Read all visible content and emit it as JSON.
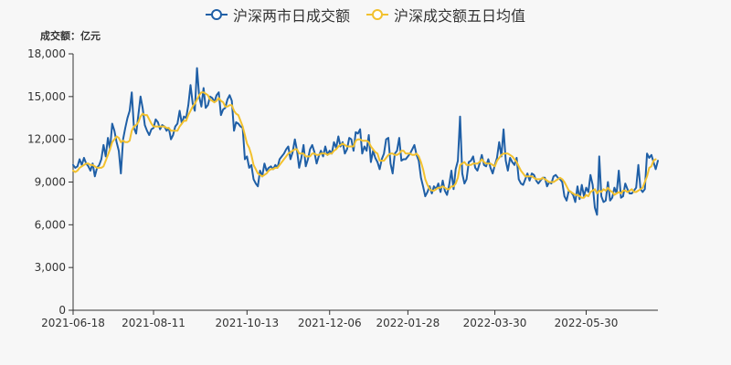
{
  "colors": {
    "series1": "#1f5fa6",
    "series2": "#f2c12e"
  },
  "chart_data": {
    "type": "line",
    "unit_label": "成交额：亿元",
    "ylim": [
      0,
      18000
    ],
    "y_ticks": [
      "0",
      "3,000",
      "6,000",
      "9,000",
      "12,000",
      "15,000",
      "18,000"
    ],
    "x_tick_labels": [
      "2021-06-18",
      "2021-08-11",
      "2021-10-13",
      "2021-12-06",
      "2022-01-28",
      "2022-03-30",
      "2022-05-30"
    ],
    "x_tick_positions": [
      0,
      37,
      80,
      118,
      154,
      194,
      236
    ],
    "legend_position": "top-center",
    "grid": false,
    "series": [
      {
        "name": "沪深两市日成交额",
        "values": [
          10200,
          10000,
          10100,
          10600,
          10200,
          10700,
          10300,
          10100,
          9800,
          10300,
          9400,
          10000,
          10200,
          10600,
          11600,
          10800,
          12100,
          11300,
          13100,
          12600,
          11800,
          11200,
          9600,
          12000,
          12800,
          13500,
          14000,
          15300,
          12800,
          12400,
          13700,
          15000,
          14200,
          13000,
          12600,
          12300,
          12700,
          12800,
          13400,
          13200,
          12700,
          13000,
          12900,
          12600,
          12800,
          12000,
          12300,
          12900,
          13100,
          14000,
          13100,
          13600,
          13500,
          14400,
          15800,
          14500,
          14000,
          17000,
          15000,
          14300,
          15600,
          14200,
          14400,
          15000,
          14900,
          14600,
          15100,
          15300,
          13700,
          14100,
          14200,
          14800,
          15100,
          14700,
          12600,
          13200,
          13100,
          12900,
          12800,
          10600,
          10800,
          10000,
          10200,
          9200,
          8900,
          8700,
          9800,
          9400,
          10300,
          9800,
          10000,
          10100,
          9900,
          10200,
          10000,
          10600,
          10800,
          11000,
          11300,
          11500,
          10600,
          11100,
          12000,
          11200,
          10000,
          10700,
          11600,
          10100,
          10600,
          11300,
          11600,
          11100,
          10300,
          10800,
          11200,
          10800,
          11500,
          10900,
          11200,
          11000,
          11800,
          11400,
          12200,
          11500,
          11800,
          11000,
          11300,
          12100,
          12000,
          11200,
          12500,
          12400,
          12700,
          11000,
          11500,
          11200,
          12300,
          10400,
          11200,
          10700,
          10400,
          9900,
          10600,
          11000,
          12000,
          12100,
          10300,
          9600,
          11000,
          11200,
          12100,
          10500,
          10600,
          10600,
          10800,
          11000,
          11300,
          11600,
          10900,
          10500,
          9300,
          8700,
          8000,
          8300,
          8700,
          8200,
          8700,
          8500,
          8900,
          8300,
          9100,
          8400,
          8100,
          8800,
          9800,
          8500,
          9900,
          10500,
          13600,
          9600,
          8900,
          9200,
          10400,
          10500,
          10800,
          10000,
          9800,
          10300,
          10900,
          10200,
          10100,
          10600,
          10000,
          9600,
          10200,
          10700,
          11800,
          10800,
          12700,
          10500,
          9800,
          10700,
          10400,
          10200,
          10700,
          9200,
          8900,
          8800,
          9200,
          9600,
          9100,
          9600,
          9500,
          9100,
          8900,
          9100,
          9300,
          9300,
          8700,
          9000,
          8900,
          9400,
          9500,
          9300,
          9200,
          9000,
          8000,
          7700,
          8400,
          8300,
          8100,
          7600,
          8700,
          7800,
          8800,
          8000,
          8600,
          8300,
          9500,
          8800,
          7200,
          6700,
          10800,
          8000,
          7600,
          7700,
          9000,
          7700,
          7900,
          8600,
          8200,
          9800,
          7900,
          8000,
          8900,
          8500,
          8200,
          8200,
          8400,
          8600,
          10200,
          8500,
          8300,
          8500,
          11000,
          10700,
          10900,
          10400,
          9900,
          10500
        ],
        "color": "#1f5fa6"
      },
      {
        "name": "沪深成交额五日均值",
        "values": [
          9800,
          9700,
          9800,
          10000,
          10100,
          10200,
          10300,
          10300,
          10200,
          10200,
          10100,
          10000,
          10000,
          10000,
          10100,
          10500,
          10900,
          11300,
          11800,
          12000,
          12200,
          12100,
          11800,
          11900,
          11800,
          11800,
          11900,
          12600,
          12900,
          13000,
          13200,
          13600,
          13800,
          13700,
          13700,
          13400,
          13100,
          12900,
          12900,
          12900,
          12900,
          12900,
          12900,
          12800,
          12800,
          12600,
          12600,
          12600,
          12600,
          12900,
          13100,
          13300,
          13300,
          13700,
          14000,
          14300,
          14500,
          14800,
          15100,
          15300,
          15300,
          15200,
          15100,
          14800,
          14700,
          14600,
          14700,
          14900,
          14700,
          14600,
          14300,
          14300,
          14400,
          14400,
          14000,
          13800,
          13700,
          13300,
          12900,
          12300,
          11700,
          11400,
          10900,
          10200,
          9900,
          9600,
          9500,
          9400,
          9500,
          9600,
          9800,
          9900,
          9900,
          10000,
          10000,
          10200,
          10400,
          10600,
          10800,
          11000,
          11100,
          11200,
          11300,
          11300,
          11000,
          11000,
          11000,
          10800,
          10800,
          10800,
          11000,
          11000,
          10900,
          10900,
          11000,
          11000,
          11000,
          10900,
          11000,
          11000,
          11200,
          11300,
          11500,
          11600,
          11700,
          11600,
          11500,
          11500,
          11500,
          11500,
          11900,
          12000,
          12000,
          11900,
          11900,
          11900,
          11800,
          11500,
          11300,
          11100,
          11000,
          10500,
          10500,
          10500,
          10700,
          10900,
          11000,
          11000,
          10900,
          10900,
          11000,
          11200,
          11200,
          11000,
          11000,
          11000,
          10900,
          10900,
          11000,
          10800,
          10400,
          9900,
          9200,
          8800,
          8500,
          8400,
          8400,
          8500,
          8600,
          8600,
          8700,
          8600,
          8500,
          8500,
          8700,
          8700,
          8900,
          9300,
          10200,
          10300,
          10400,
          10200,
          10200,
          10200,
          10300,
          10300,
          10300,
          10400,
          10600,
          10400,
          10300,
          10300,
          10300,
          10200,
          10100,
          10500,
          10700,
          10900,
          11000,
          11000,
          11000,
          10900,
          10800,
          10600,
          10400,
          10100,
          9800,
          9600,
          9400,
          9400,
          9400,
          9400,
          9300,
          9200,
          9200,
          9200,
          9300,
          9200,
          9100,
          9000,
          9000,
          9000,
          9100,
          9200,
          9300,
          9200,
          9000,
          8700,
          8400,
          8300,
          8200,
          8100,
          8100,
          8000,
          7900,
          7900,
          8100,
          8000,
          8300,
          8400,
          8500,
          8200,
          8400,
          8300,
          8500,
          8400,
          8600,
          8400,
          8300,
          8100,
          8200,
          8300,
          8200,
          8400,
          8400,
          8300,
          8400,
          8500,
          8300,
          8300,
          8400,
          8500,
          8600,
          9000,
          9400,
          10000,
          10100,
          10500,
          10600
        ],
        "color": "#f2c12e"
      }
    ]
  }
}
